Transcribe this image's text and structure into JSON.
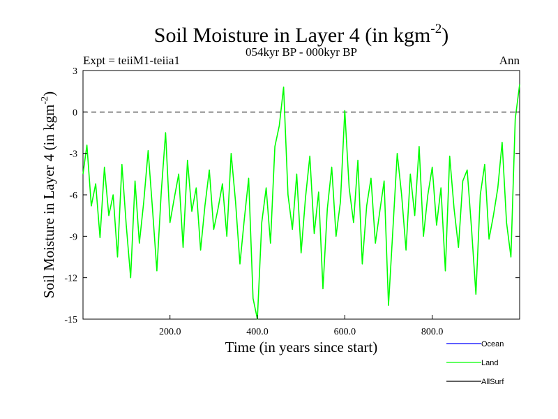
{
  "header": {
    "title_main": "Soil Moisture in Layer 4 (in kgm",
    "title_sup": "-2",
    "title_close": ")",
    "experiment": "Expt = teiiM1-teiia1",
    "period": "054kyr BP - 000kyr BP",
    "season": "Ann"
  },
  "chart_data": {
    "type": "line",
    "xlabel": "Time (in years since start)",
    "ylabel_main": "Soil Moisture in Layer 4 (in kgm",
    "ylabel_sup": "-2",
    "ylabel_close": ")",
    "xlim": [
      1,
      1000
    ],
    "ylim": [
      -15,
      3
    ],
    "x_ticks": [
      200,
      400,
      600,
      800
    ],
    "x_tick_labels": [
      "200.0",
      "400.0",
      "600.0",
      "800.0"
    ],
    "y_ticks": [
      3,
      0,
      -3,
      -6,
      -9,
      -12,
      -15
    ],
    "y_tick_labels": [
      "3",
      "0",
      "-3",
      "-6",
      "-9",
      "-12",
      "-15"
    ],
    "reference_line": {
      "y": 0,
      "style": "dashed",
      "color": "#000000"
    },
    "grid": false,
    "legend_position": "bottom-right",
    "series": [
      {
        "name": "Ocean",
        "color": "#0000ff",
        "values": []
      },
      {
        "name": "AllSurf",
        "color": "#000000",
        "values": []
      },
      {
        "name": "Land",
        "color": "#00ff00",
        "x": [
          1,
          10,
          20,
          30,
          40,
          50,
          60,
          70,
          80,
          90,
          100,
          110,
          120,
          130,
          140,
          150,
          160,
          170,
          180,
          190,
          200,
          210,
          220,
          230,
          240,
          250,
          260,
          270,
          280,
          290,
          300,
          310,
          320,
          330,
          340,
          350,
          360,
          370,
          380,
          390,
          400,
          410,
          420,
          430,
          440,
          450,
          460,
          470,
          480,
          490,
          500,
          510,
          520,
          530,
          540,
          550,
          560,
          570,
          580,
          590,
          600,
          610,
          620,
          630,
          640,
          650,
          660,
          670,
          680,
          690,
          700,
          710,
          720,
          730,
          740,
          750,
          760,
          770,
          780,
          790,
          800,
          810,
          820,
          830,
          840,
          850,
          860,
          870,
          880,
          890,
          900,
          910,
          920,
          930,
          940,
          950,
          960,
          970,
          980,
          990,
          1000
        ],
        "values": [
          -4.5,
          -2.4,
          -6.8,
          -5.2,
          -9.1,
          -4.0,
          -7.5,
          -6.0,
          -10.5,
          -3.8,
          -8.2,
          -12.0,
          -5.0,
          -9.5,
          -6.5,
          -2.8,
          -7.0,
          -11.5,
          -5.8,
          -1.5,
          -8.0,
          -6.2,
          -4.5,
          -9.8,
          -3.5,
          -7.2,
          -5.5,
          -10.0,
          -6.8,
          -4.2,
          -8.5,
          -7.0,
          -5.2,
          -9.0,
          -3.0,
          -6.5,
          -11.0,
          -7.8,
          -4.8,
          -13.5,
          -15.0,
          -8.0,
          -5.5,
          -9.5,
          -2.5,
          -1.0,
          1.8,
          -6.0,
          -8.5,
          -4.5,
          -10.2,
          -6.2,
          -3.2,
          -8.8,
          -5.8,
          -12.8,
          -7.0,
          -4.0,
          -9.0,
          -6.5,
          0.1,
          -5.5,
          -8.0,
          -3.5,
          -11.0,
          -6.8,
          -4.8,
          -9.5,
          -7.2,
          -5.0,
          -14.0,
          -8.5,
          -3.0,
          -6.0,
          -10.0,
          -4.5,
          -7.5,
          -2.5,
          -9.0,
          -6.0,
          -4.0,
          -8.2,
          -5.5,
          -11.5,
          -3.2,
          -7.0,
          -9.8,
          -5.0,
          -4.2,
          -8.5,
          -13.2,
          -6.0,
          -3.8,
          -9.2,
          -7.5,
          -5.5,
          -2.2,
          -8.0,
          -10.5,
          -0.5,
          2.0
        ]
      }
    ]
  }
}
